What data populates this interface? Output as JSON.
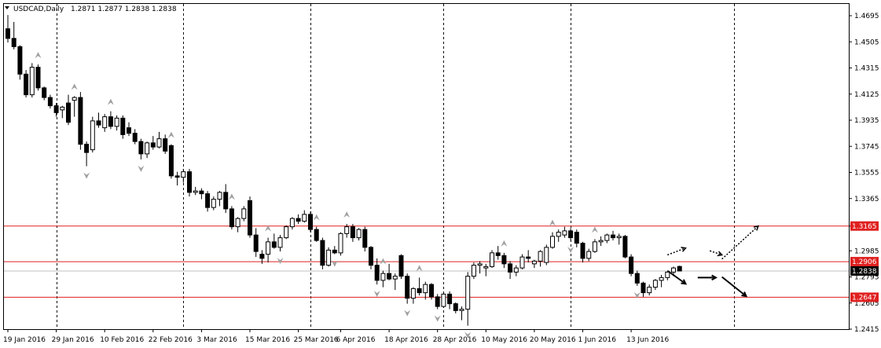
{
  "header": {
    "symbol": "USDCAD,Daily",
    "ohlc": "1.2871 1.2877 1.2838 1.2838"
  },
  "chart_data": {
    "type": "candlestick",
    "ylim": [
      1.2415,
      1.4695
    ],
    "y_ticks": [
      "1.4695",
      "1.4505",
      "1.4315",
      "1.4125",
      "1.3935",
      "1.3745",
      "1.3555",
      "1.3365",
      "1.3165",
      "1.2985",
      "1.2795",
      "1.2605",
      "1.2415"
    ],
    "x_ticks": [
      {
        "label": "19 Jan 2016",
        "bar": 0
      },
      {
        "label": "29 Jan 2016",
        "bar": 8
      },
      {
        "label": "10 Feb 2016",
        "bar": 16
      },
      {
        "label": "22 Feb 2016",
        "bar": 24
      },
      {
        "label": "3 Mar 2016",
        "bar": 32
      },
      {
        "label": "15 Mar 2016",
        "bar": 40
      },
      {
        "label": "25 Mar 2016",
        "bar": 48
      },
      {
        "label": "6 Apr 2016",
        "bar": 55
      },
      {
        "label": "18 Apr 2016",
        "bar": 63
      },
      {
        "label": "28 Apr 2016",
        "bar": 71
      },
      {
        "label": "10 May 2016",
        "bar": 79
      },
      {
        "label": "20 May 2016",
        "bar": 87
      },
      {
        "label": "1 Jun 2016",
        "bar": 95
      },
      {
        "label": "13 Jun 2016",
        "bar": 103
      }
    ],
    "vlines": [
      8,
      29,
      50,
      72,
      93,
      120
    ],
    "grid": "dashed",
    "levels": [
      {
        "value": 1.3165,
        "label": "1.3165",
        "color": "#e02020"
      },
      {
        "value": 1.2906,
        "label": "1.2906",
        "color": "#e02020"
      },
      {
        "value": 1.2647,
        "label": "1.2647",
        "color": "#e02020"
      }
    ],
    "current": {
      "value": 1.2838,
      "label": "1.2838",
      "line_color": "#c0c0c0"
    },
    "colors": {
      "up": "#ffffff",
      "down": "#000000",
      "outline": "#000000",
      "fractal": "#a0a0a0",
      "grid": "#000000"
    },
    "candles": [
      [
        1.46,
        1.47,
        1.45,
        1.453
      ],
      [
        1.453,
        1.465,
        1.445,
        1.447
      ],
      [
        1.447,
        1.448,
        1.423,
        1.427
      ],
      [
        1.427,
        1.43,
        1.41,
        1.412
      ],
      [
        1.412,
        1.435,
        1.41,
        1.432
      ],
      [
        1.432,
        1.434,
        1.415,
        1.417
      ],
      [
        1.417,
        1.418,
        1.408,
        1.41
      ],
      [
        1.41,
        1.412,
        1.402,
        1.404
      ],
      [
        1.404,
        1.406,
        1.396,
        1.399
      ],
      [
        1.401,
        1.404,
        1.395,
        1.403
      ],
      [
        1.406,
        1.412,
        1.39,
        1.392
      ],
      [
        1.408,
        1.411,
        1.396,
        1.41
      ],
      [
        1.41,
        1.414,
        1.372,
        1.376
      ],
      [
        1.376,
        1.378,
        1.36,
        1.37
      ],
      [
        1.372,
        1.396,
        1.37,
        1.393
      ],
      [
        1.393,
        1.399,
        1.388,
        1.39
      ],
      [
        1.388,
        1.398,
        1.385,
        1.396
      ],
      [
        1.396,
        1.4,
        1.387,
        1.389
      ],
      [
        1.389,
        1.397,
        1.386,
        1.395
      ],
      [
        1.395,
        1.397,
        1.38,
        1.383
      ],
      [
        1.388,
        1.392,
        1.382,
        1.384
      ],
      [
        1.384,
        1.387,
        1.376,
        1.378
      ],
      [
        1.378,
        1.38,
        1.365,
        1.369
      ],
      [
        1.369,
        1.378,
        1.366,
        1.377
      ],
      [
        1.377,
        1.382,
        1.372,
        1.374
      ],
      [
        1.374,
        1.385,
        1.373,
        1.38
      ],
      [
        1.38,
        1.383,
        1.369,
        1.371
      ],
      [
        1.375,
        1.376,
        1.351,
        1.353
      ],
      [
        1.353,
        1.356,
        1.346,
        1.352
      ],
      [
        1.352,
        1.358,
        1.348,
        1.356
      ],
      [
        1.356,
        1.358,
        1.338,
        1.341
      ],
      [
        1.341,
        1.345,
        1.339,
        1.342
      ],
      [
        1.342,
        1.344,
        1.336,
        1.34
      ],
      [
        1.34,
        1.342,
        1.327,
        1.33
      ],
      [
        1.33,
        1.338,
        1.328,
        1.336
      ],
      [
        1.336,
        1.342,
        1.331,
        1.341
      ],
      [
        1.341,
        1.347,
        1.326,
        1.329
      ],
      [
        1.329,
        1.331,
        1.314,
        1.316
      ],
      [
        1.316,
        1.323,
        1.312,
        1.322
      ],
      [
        1.322,
        1.331,
        1.32,
        1.329
      ],
      [
        1.335,
        1.338,
        1.308,
        1.31
      ],
      [
        1.31,
        1.315,
        1.294,
        1.298
      ],
      [
        1.296,
        1.299,
        1.289,
        1.293
      ],
      [
        1.296,
        1.308,
        1.29,
        1.305
      ],
      [
        1.305,
        1.311,
        1.3,
        1.301
      ],
      [
        1.301,
        1.31,
        1.298,
        1.308
      ],
      [
        1.308,
        1.317,
        1.307,
        1.316
      ],
      [
        1.316,
        1.323,
        1.314,
        1.322
      ],
      [
        1.322,
        1.325,
        1.318,
        1.32
      ],
      [
        1.32,
        1.328,
        1.319,
        1.325
      ],
      [
        1.325,
        1.327,
        1.312,
        1.314
      ],
      [
        1.314,
        1.316,
        1.305,
        1.306
      ],
      [
        1.306,
        1.308,
        1.285,
        1.288
      ],
      [
        1.288,
        1.301,
        1.287,
        1.299
      ],
      [
        1.299,
        1.302,
        1.296,
        1.297
      ],
      [
        1.297,
        1.312,
        1.295,
        1.311
      ],
      [
        1.311,
        1.318,
        1.308,
        1.316
      ],
      [
        1.316,
        1.318,
        1.305,
        1.308
      ],
      [
        1.308,
        1.315,
        1.306,
        1.314
      ],
      [
        1.314,
        1.316,
        1.298,
        1.301
      ],
      [
        1.301,
        1.302,
        1.285,
        1.288
      ],
      [
        1.288,
        1.293,
        1.274,
        1.277
      ],
      [
        1.277,
        1.284,
        1.272,
        1.282
      ],
      [
        1.282,
        1.289,
        1.277,
        1.278
      ],
      [
        1.278,
        1.282,
        1.27,
        1.28
      ],
      [
        1.295,
        1.296,
        1.278,
        1.28
      ],
      [
        1.28,
        1.282,
        1.26,
        1.264
      ],
      [
        1.264,
        1.272,
        1.26,
        1.271
      ],
      [
        1.271,
        1.279,
        1.266,
        1.268
      ],
      [
        1.268,
        1.276,
        1.263,
        1.274
      ],
      [
        1.274,
        1.275,
        1.263,
        1.265
      ],
      [
        1.265,
        1.267,
        1.256,
        1.258
      ],
      [
        1.258,
        1.268,
        1.257,
        1.267
      ],
      [
        1.267,
        1.269,
        1.256,
        1.26
      ],
      [
        1.26,
        1.261,
        1.253,
        1.255
      ],
      [
        1.255,
        1.258,
        1.248,
        1.256
      ],
      [
        1.256,
        1.283,
        1.244,
        1.28
      ],
      [
        1.28,
        1.29,
        1.278,
        1.288
      ],
      [
        1.288,
        1.291,
        1.282,
        1.289
      ],
      [
        1.286,
        1.289,
        1.28,
        1.287
      ],
      [
        1.287,
        1.299,
        1.286,
        1.297
      ],
      [
        1.297,
        1.302,
        1.292,
        1.295
      ],
      [
        1.295,
        1.297,
        1.286,
        1.289
      ],
      [
        1.289,
        1.291,
        1.278,
        1.283
      ],
      [
        1.283,
        1.288,
        1.28,
        1.286
      ],
      [
        1.286,
        1.296,
        1.285,
        1.294
      ],
      [
        1.294,
        1.299,
        1.29,
        1.293
      ],
      [
        1.289,
        1.292,
        1.286,
        1.291
      ],
      [
        1.291,
        1.299,
        1.287,
        1.298
      ],
      [
        1.29,
        1.303,
        1.288,
        1.301
      ],
      [
        1.301,
        1.312,
        1.3,
        1.309
      ],
      [
        1.309,
        1.314,
        1.305,
        1.312
      ],
      [
        1.31,
        1.316,
        1.308,
        1.313
      ],
      [
        1.313,
        1.315,
        1.306,
        1.308
      ],
      [
        1.312,
        1.314,
        1.301,
        1.304
      ],
      [
        1.304,
        1.305,
        1.29,
        1.293
      ],
      [
        1.293,
        1.3,
        1.291,
        1.298
      ],
      [
        1.298,
        1.307,
        1.297,
        1.305
      ],
      [
        1.305,
        1.309,
        1.302,
        1.306
      ],
      [
        1.306,
        1.311,
        1.304,
        1.31
      ],
      [
        1.31,
        1.313,
        1.306,
        1.308
      ],
      [
        1.308,
        1.311,
        1.303,
        1.309
      ],
      [
        1.309,
        1.31,
        1.293,
        1.294
      ],
      [
        1.294,
        1.296,
        1.28,
        1.282
      ],
      [
        1.282,
        1.284,
        1.273,
        1.275
      ],
      [
        1.275,
        1.276,
        1.265,
        1.268
      ],
      [
        1.268,
        1.274,
        1.266,
        1.272
      ],
      [
        1.272,
        1.278,
        1.27,
        1.277
      ],
      [
        1.277,
        1.281,
        1.272,
        1.279
      ],
      [
        1.279,
        1.283,
        1.277,
        1.283
      ],
      [
        1.283,
        1.287,
        1.28,
        1.286
      ],
      [
        1.2871,
        1.2877,
        1.2838,
        1.2838
      ]
    ],
    "fractals": [
      {
        "bar": 5,
        "type": "up"
      },
      {
        "bar": 13,
        "type": "down"
      },
      {
        "bar": 11,
        "type": "up"
      },
      {
        "bar": 17,
        "type": "up"
      },
      {
        "bar": 22,
        "type": "down"
      },
      {
        "bar": 27,
        "type": "up"
      },
      {
        "bar": 37,
        "type": "up"
      },
      {
        "bar": 43,
        "type": "up"
      },
      {
        "bar": 45,
        "type": "down"
      },
      {
        "bar": 51,
        "type": "up"
      },
      {
        "bar": 54,
        "type": "down"
      },
      {
        "bar": 56,
        "type": "up"
      },
      {
        "bar": 61,
        "type": "down"
      },
      {
        "bar": 62,
        "type": "up"
      },
      {
        "bar": 66,
        "type": "down"
      },
      {
        "bar": 68,
        "type": "up"
      },
      {
        "bar": 71,
        "type": "down"
      },
      {
        "bar": 76,
        "type": "down"
      },
      {
        "bar": 82,
        "type": "up"
      },
      {
        "bar": 90,
        "type": "up"
      },
      {
        "bar": 93,
        "type": "down"
      },
      {
        "bar": 97,
        "type": "up"
      },
      {
        "bar": 104,
        "type": "down"
      }
    ],
    "arrows": [
      {
        "from": [
          109,
          1.2955
        ],
        "to": [
          112,
          1.3005
        ],
        "style": "dotted"
      },
      {
        "from": [
          116,
          1.2985
        ],
        "to": [
          118,
          1.2955
        ],
        "style": "dotted"
      },
      {
        "from": [
          118,
          1.2925
        ],
        "to": [
          124,
          1.3165
        ],
        "style": "dotted"
      },
      {
        "from": [
          109,
          1.284
        ],
        "to": [
          112,
          1.2745
        ],
        "style": "solid"
      },
      {
        "from": [
          114,
          1.279
        ],
        "to": [
          117,
          1.279
        ],
        "style": "solid"
      },
      {
        "from": [
          118,
          1.2795
        ],
        "to": [
          122,
          1.2655
        ],
        "style": "solid"
      }
    ]
  }
}
